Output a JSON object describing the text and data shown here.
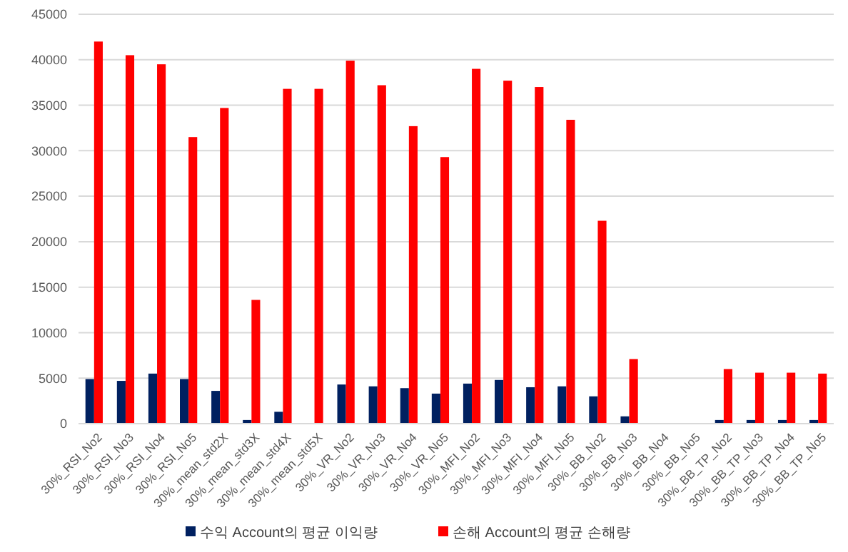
{
  "chart_data": {
    "type": "bar",
    "categories": [
      "30%_RSI_No2",
      "30%_RSI_No3",
      "30%_RSI_No4",
      "30%_RSI_No5",
      "30%_mean_std2X",
      "30%_mean_std3X",
      "30%_mean_std4X",
      "30%_mean_std5X",
      "30%_VR_No2",
      "30%_VR_No3",
      "30%_VR_No4",
      "30%_VR_No5",
      "30%_MFI_No2",
      "30%_MFI_No3",
      "30%_MFI_No4",
      "30%_MFI_No5",
      "30%_BB_No2",
      "30%_BB_No3",
      "30%_BB_No4",
      "30%_BB_No5",
      "30%_BB_TP_No2",
      "30%_BB_TP_No3",
      "30%_BB_TP_No4",
      "30%_BB_TP_No5"
    ],
    "series": [
      {
        "name": "수익 Account의 평균 이익량",
        "color": "#002060",
        "values": [
          4900,
          4700,
          5500,
          4900,
          3600,
          400,
          1300,
          0,
          4300,
          4100,
          3900,
          3300,
          4400,
          4800,
          4000,
          4100,
          3000,
          800,
          0,
          0,
          400,
          400,
          400,
          400
        ]
      },
      {
        "name": "손해 Account의 평균 손해량",
        "color": "#ff0000",
        "values": [
          42000,
          40500,
          39500,
          31500,
          34700,
          13600,
          36800,
          36800,
          39900,
          37200,
          32700,
          29300,
          39000,
          37700,
          37000,
          33400,
          22300,
          7100,
          0,
          0,
          6000,
          5600,
          5600,
          5500
        ]
      }
    ],
    "ylim": [
      0,
      45000
    ],
    "yticks": [
      0,
      5000,
      10000,
      15000,
      20000,
      25000,
      30000,
      35000,
      40000,
      45000
    ],
    "grid": "y",
    "legend": "bottom"
  }
}
